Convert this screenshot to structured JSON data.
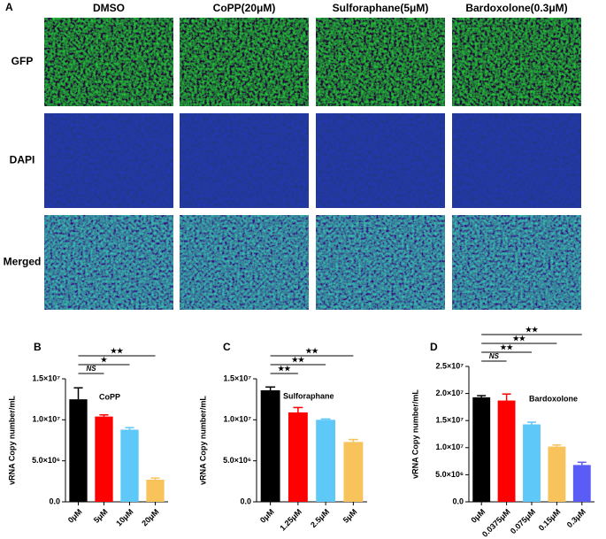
{
  "panel_a": {
    "letter": "A",
    "columns": [
      "DMSO",
      "CoPP(20μM)",
      "Sulforaphane(5μM)",
      "Bardoxolone(0.3μM)"
    ],
    "rows": [
      "GFP",
      "DAPI",
      "Merged"
    ]
  },
  "chart_data": [
    {
      "type": "bar",
      "letter": "B",
      "label": "CoPP",
      "ylabel": "vRNA Copy number/mL",
      "categories": [
        "0μM",
        "5μM",
        "10μM",
        "20μM"
      ],
      "values": [
        12500000,
        10400000,
        8800000,
        2700000
      ],
      "errors": [
        1400000,
        200000,
        250000,
        200000
      ],
      "colors": [
        "#000000",
        "#ff0000",
        "#5ec8f8",
        "#f9c35c"
      ],
      "ylim": [
        0,
        15000000
      ],
      "yticks": [
        {
          "value": 0,
          "label": "0.0"
        },
        {
          "value": 5000000,
          "label": "5.0×10⁶"
        },
        {
          "value": 10000000,
          "label": "1.0×10⁷"
        },
        {
          "value": 15000000,
          "label": "1.5×10⁷"
        }
      ],
      "annotations": [
        {
          "text": "NS",
          "to": 1
        },
        {
          "text": "★",
          "to": 2
        },
        {
          "text": "★★",
          "to": 3
        }
      ]
    },
    {
      "type": "bar",
      "letter": "C",
      "label": "Sulforaphane",
      "ylabel": "vRNA Copy number/mL",
      "categories": [
        "0μM",
        "1.25μM",
        "2.5μM",
        "5μM"
      ],
      "values": [
        13600000,
        10900000,
        10000000,
        7300000
      ],
      "errors": [
        400000,
        600000,
        100000,
        300000
      ],
      "colors": [
        "#000000",
        "#ff0000",
        "#5ec8f8",
        "#f9c35c"
      ],
      "ylim": [
        0,
        15000000
      ],
      "yticks": [
        {
          "value": 0,
          "label": "0.0"
        },
        {
          "value": 5000000,
          "label": "5.0×10⁶"
        },
        {
          "value": 10000000,
          "label": "1.0×10⁷"
        },
        {
          "value": 15000000,
          "label": "1.5×10⁷"
        }
      ],
      "annotations": [
        {
          "text": "★★",
          "to": 1
        },
        {
          "text": "★★",
          "to": 2
        },
        {
          "text": "★★",
          "to": 3
        }
      ]
    },
    {
      "type": "bar",
      "letter": "D",
      "label": "Bardoxolone",
      "ylabel": "vRNA Copy number/mL",
      "categories": [
        "0μM",
        "0.0375μM",
        "0.075μM",
        "0.15μM",
        "0.3μM"
      ],
      "values": [
        19300000,
        18700000,
        14300000,
        10200000,
        6800000
      ],
      "errors": [
        300000,
        1200000,
        400000,
        300000,
        500000
      ],
      "colors": [
        "#000000",
        "#ff0000",
        "#5ec8f8",
        "#f9c35c",
        "#5b5bf5"
      ],
      "ylim": [
        0,
        25000000
      ],
      "yticks": [
        {
          "value": 0,
          "label": "0.0"
        },
        {
          "value": 5000000,
          "label": "5.0×10⁶"
        },
        {
          "value": 10000000,
          "label": "1.0×10⁷"
        },
        {
          "value": 15000000,
          "label": "1.5×10⁷"
        },
        {
          "value": 20000000,
          "label": "2.0×10⁷"
        },
        {
          "value": 25000000,
          "label": "2.5×10⁷"
        }
      ],
      "annotations": [
        {
          "text": "NS",
          "to": 1
        },
        {
          "text": "★★",
          "to": 2
        },
        {
          "text": "★★",
          "to": 3
        },
        {
          "text": "★★",
          "to": 4
        }
      ]
    }
  ]
}
